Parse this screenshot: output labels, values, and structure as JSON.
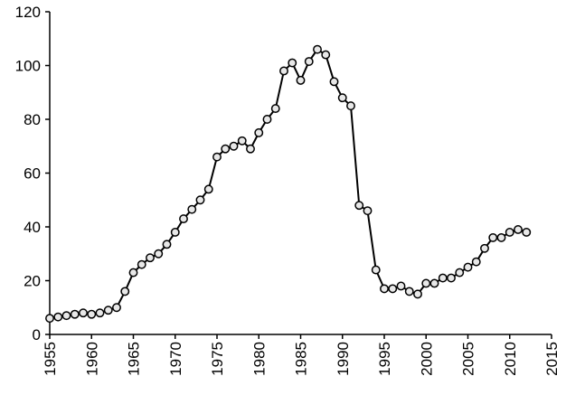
{
  "chart_data": {
    "type": "line",
    "x": [
      1955,
      1956,
      1957,
      1958,
      1959,
      1960,
      1961,
      1962,
      1963,
      1964,
      1965,
      1966,
      1967,
      1968,
      1969,
      1970,
      1971,
      1972,
      1973,
      1974,
      1975,
      1976,
      1977,
      1978,
      1979,
      1980,
      1981,
      1982,
      1983,
      1984,
      1985,
      1986,
      1987,
      1988,
      1989,
      1990,
      1991,
      1992,
      1993,
      1994,
      1995,
      1996,
      1997,
      1998,
      1999,
      2000,
      2001,
      2002,
      2003,
      2004,
      2005,
      2006,
      2007,
      2008,
      2009,
      2010,
      2011,
      2012
    ],
    "values": [
      6,
      6.5,
      7,
      7.5,
      8,
      7.5,
      8,
      9,
      10,
      16,
      23,
      26,
      28.5,
      30,
      33.5,
      38,
      43,
      46.5,
      50,
      54,
      66,
      69,
      70,
      72,
      69,
      75,
      80,
      84,
      98,
      101,
      94.5,
      101.5,
      106,
      104,
      94,
      88,
      85,
      48,
      46,
      24,
      17,
      17,
      18,
      16,
      15,
      19,
      19,
      21,
      21,
      23,
      25,
      27,
      32,
      36,
      36,
      38,
      39,
      38
    ],
    "color": "#000000",
    "xlim": [
      1955,
      2015
    ],
    "xticks": [
      1955,
      1960,
      1965,
      1970,
      1975,
      1980,
      1985,
      1990,
      1995,
      2000,
      2005,
      2010,
      2015
    ],
    "ylim": [
      0,
      120
    ],
    "yticks": [
      0,
      20,
      40,
      60,
      80,
      100,
      120
    ],
    "markers": true
  }
}
